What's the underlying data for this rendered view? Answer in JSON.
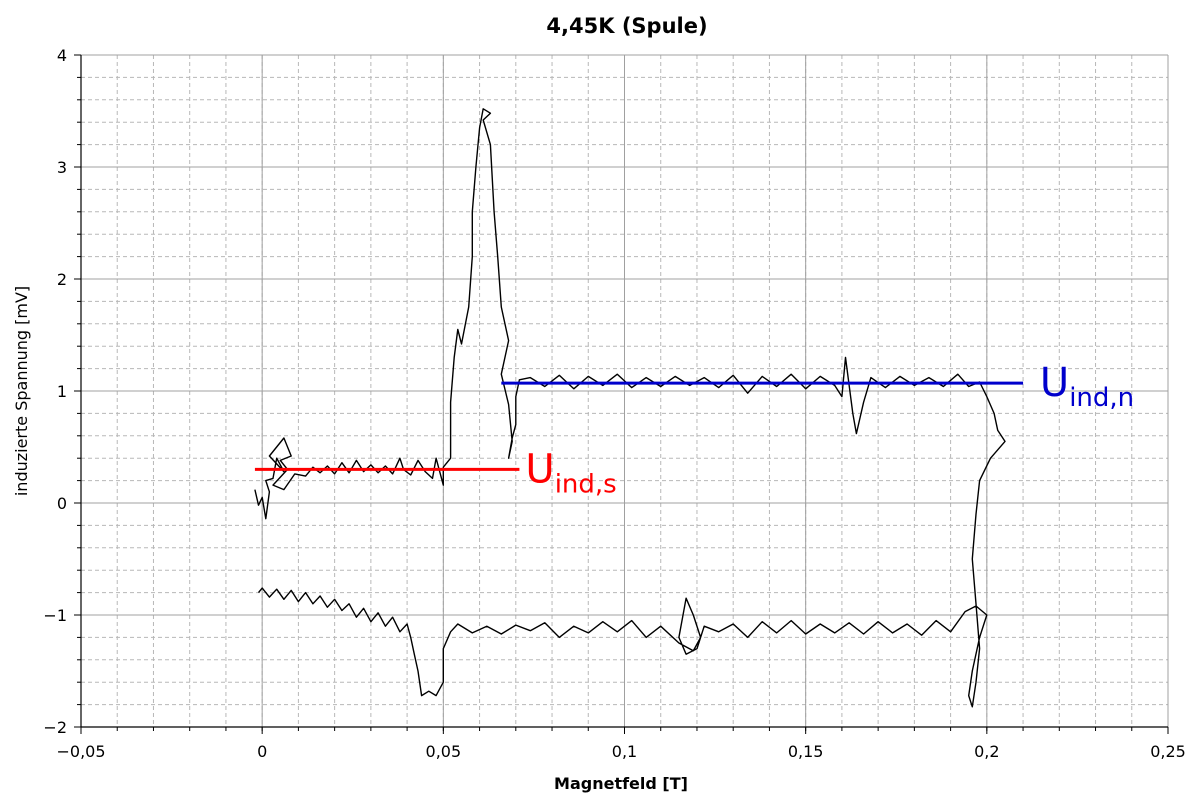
{
  "chart_data": {
    "type": "line",
    "title": "4,45K (Spule)",
    "xlabel": "Magnetfeld [T]",
    "ylabel": "induzierte Spannung [mV]",
    "xlim": [
      -0.05,
      0.25
    ],
    "ylim": [
      -2,
      4
    ],
    "x_ticks": [
      -0.05,
      0,
      0.05,
      0.1,
      0.15,
      0.2,
      0.25
    ],
    "x_tick_labels": [
      "−0,05",
      "0",
      "0,05",
      "0,1",
      "0,15",
      "0,2",
      "0,25"
    ],
    "y_ticks": [
      -2,
      -1,
      0,
      1,
      2,
      3,
      4
    ],
    "y_tick_labels": [
      "−2",
      "−1",
      "0",
      "1",
      "2",
      "3",
      "4"
    ],
    "grid": true,
    "series": [
      {
        "color": "#000000",
        "points": [
          [
            -0.002,
            0.12
          ],
          [
            -0.001,
            -0.02
          ],
          [
            0.0,
            0.05
          ],
          [
            0.001,
            -0.14
          ],
          [
            0.002,
            0.1
          ],
          [
            0.001,
            0.2
          ],
          [
            0.003,
            0.22
          ],
          [
            0.004,
            0.4
          ],
          [
            0.006,
            0.28
          ],
          [
            0.002,
            0.42
          ],
          [
            0.006,
            0.58
          ],
          [
            0.008,
            0.42
          ],
          [
            0.005,
            0.38
          ],
          [
            0.007,
            0.3
          ],
          [
            0.003,
            0.16
          ],
          [
            0.006,
            0.12
          ],
          [
            0.009,
            0.26
          ],
          [
            0.012,
            0.24
          ],
          [
            0.014,
            0.32
          ],
          [
            0.016,
            0.27
          ],
          [
            0.018,
            0.33
          ],
          [
            0.02,
            0.26
          ],
          [
            0.022,
            0.36
          ],
          [
            0.024,
            0.27
          ],
          [
            0.026,
            0.38
          ],
          [
            0.028,
            0.28
          ],
          [
            0.03,
            0.34
          ],
          [
            0.032,
            0.27
          ],
          [
            0.034,
            0.33
          ],
          [
            0.036,
            0.26
          ],
          [
            0.038,
            0.4
          ],
          [
            0.039,
            0.3
          ],
          [
            0.041,
            0.25
          ],
          [
            0.043,
            0.38
          ],
          [
            0.045,
            0.28
          ],
          [
            0.047,
            0.22
          ],
          [
            0.048,
            0.4
          ],
          [
            0.05,
            0.16
          ],
          [
            0.05,
            0.32
          ],
          [
            0.052,
            0.4
          ],
          [
            0.052,
            0.9
          ],
          [
            0.053,
            1.3
          ],
          [
            0.054,
            1.55
          ],
          [
            0.055,
            1.42
          ],
          [
            0.057,
            1.75
          ],
          [
            0.058,
            2.2
          ],
          [
            0.058,
            2.6
          ],
          [
            0.059,
            3.0
          ],
          [
            0.06,
            3.35
          ],
          [
            0.061,
            3.52
          ],
          [
            0.063,
            3.48
          ],
          [
            0.061,
            3.42
          ],
          [
            0.063,
            3.2
          ],
          [
            0.064,
            2.6
          ],
          [
            0.065,
            2.2
          ],
          [
            0.066,
            1.75
          ],
          [
            0.068,
            1.45
          ],
          [
            0.066,
            1.15
          ],
          [
            0.068,
            0.88
          ],
          [
            0.069,
            0.55
          ],
          [
            0.068,
            0.4
          ],
          [
            0.069,
            0.58
          ],
          [
            0.07,
            0.7
          ],
          [
            0.07,
            0.95
          ],
          [
            0.071,
            1.1
          ],
          [
            0.074,
            1.12
          ],
          [
            0.078,
            1.04
          ],
          [
            0.082,
            1.14
          ],
          [
            0.086,
            1.02
          ],
          [
            0.09,
            1.13
          ],
          [
            0.094,
            1.05
          ],
          [
            0.098,
            1.15
          ],
          [
            0.102,
            1.03
          ],
          [
            0.106,
            1.12
          ],
          [
            0.11,
            1.04
          ],
          [
            0.114,
            1.13
          ],
          [
            0.118,
            1.05
          ],
          [
            0.122,
            1.12
          ],
          [
            0.126,
            1.03
          ],
          [
            0.13,
            1.14
          ],
          [
            0.134,
            0.98
          ],
          [
            0.138,
            1.13
          ],
          [
            0.142,
            1.04
          ],
          [
            0.146,
            1.15
          ],
          [
            0.15,
            1.02
          ],
          [
            0.154,
            1.13
          ],
          [
            0.158,
            1.05
          ],
          [
            0.16,
            0.95
          ],
          [
            0.161,
            1.3
          ],
          [
            0.163,
            0.8
          ],
          [
            0.164,
            0.62
          ],
          [
            0.166,
            0.9
          ],
          [
            0.168,
            1.12
          ],
          [
            0.172,
            1.03
          ],
          [
            0.176,
            1.13
          ],
          [
            0.18,
            1.05
          ],
          [
            0.184,
            1.12
          ],
          [
            0.188,
            1.04
          ],
          [
            0.192,
            1.15
          ],
          [
            0.195,
            1.04
          ],
          [
            0.198,
            1.08
          ],
          [
            0.2,
            0.95
          ],
          [
            0.202,
            0.8
          ],
          [
            0.203,
            0.65
          ],
          [
            0.205,
            0.55
          ],
          [
            0.201,
            0.4
          ],
          [
            0.198,
            0.2
          ],
          [
            0.197,
            -0.1
          ],
          [
            0.196,
            -0.5
          ],
          [
            0.197,
            -0.9
          ],
          [
            0.198,
            -1.3
          ],
          [
            0.197,
            -1.6
          ],
          [
            0.196,
            -1.82
          ],
          [
            0.195,
            -1.72
          ],
          [
            0.196,
            -1.5
          ],
          [
            0.198,
            -1.2
          ],
          [
            0.2,
            -1.0
          ],
          [
            0.197,
            -0.92
          ],
          [
            0.194,
            -0.97
          ],
          [
            0.19,
            -1.15
          ],
          [
            0.186,
            -1.05
          ],
          [
            0.182,
            -1.18
          ],
          [
            0.178,
            -1.08
          ],
          [
            0.174,
            -1.16
          ],
          [
            0.17,
            -1.06
          ],
          [
            0.166,
            -1.17
          ],
          [
            0.162,
            -1.07
          ],
          [
            0.158,
            -1.16
          ],
          [
            0.154,
            -1.08
          ],
          [
            0.15,
            -1.17
          ],
          [
            0.146,
            -1.05
          ],
          [
            0.142,
            -1.16
          ],
          [
            0.138,
            -1.06
          ],
          [
            0.134,
            -1.2
          ],
          [
            0.13,
            -1.08
          ],
          [
            0.126,
            -1.15
          ],
          [
            0.122,
            -1.1
          ],
          [
            0.12,
            -1.3
          ],
          [
            0.117,
            -1.35
          ],
          [
            0.115,
            -1.2
          ],
          [
            0.117,
            -0.85
          ],
          [
            0.119,
            -1.0
          ],
          [
            0.121,
            -1.2
          ],
          [
            0.119,
            -1.32
          ],
          [
            0.115,
            -1.25
          ],
          [
            0.11,
            -1.1
          ],
          [
            0.106,
            -1.2
          ],
          [
            0.102,
            -1.05
          ],
          [
            0.098,
            -1.15
          ],
          [
            0.094,
            -1.06
          ],
          [
            0.09,
            -1.16
          ],
          [
            0.086,
            -1.1
          ],
          [
            0.082,
            -1.2
          ],
          [
            0.078,
            -1.07
          ],
          [
            0.074,
            -1.14
          ],
          [
            0.07,
            -1.09
          ],
          [
            0.066,
            -1.17
          ],
          [
            0.062,
            -1.1
          ],
          [
            0.058,
            -1.16
          ],
          [
            0.054,
            -1.08
          ],
          [
            0.052,
            -1.15
          ],
          [
            0.05,
            -1.3
          ],
          [
            0.05,
            -1.52
          ],
          [
            0.05,
            -1.6
          ],
          [
            0.048,
            -1.72
          ],
          [
            0.046,
            -1.68
          ],
          [
            0.044,
            -1.72
          ],
          [
            0.043,
            -1.5
          ],
          [
            0.042,
            -1.35
          ],
          [
            0.041,
            -1.2
          ],
          [
            0.04,
            -1.08
          ],
          [
            0.038,
            -1.15
          ],
          [
            0.036,
            -1.02
          ],
          [
            0.034,
            -1.1
          ],
          [
            0.032,
            -0.98
          ],
          [
            0.03,
            -1.06
          ],
          [
            0.028,
            -0.94
          ],
          [
            0.026,
            -1.02
          ],
          [
            0.024,
            -0.9
          ],
          [
            0.022,
            -0.96
          ],
          [
            0.02,
            -0.86
          ],
          [
            0.018,
            -0.93
          ],
          [
            0.016,
            -0.83
          ],
          [
            0.014,
            -0.9
          ],
          [
            0.012,
            -0.8
          ],
          [
            0.01,
            -0.88
          ],
          [
            0.008,
            -0.78
          ],
          [
            0.006,
            -0.86
          ],
          [
            0.004,
            -0.77
          ],
          [
            0.002,
            -0.84
          ],
          [
            0.0,
            -0.76
          ],
          [
            -0.001,
            -0.8
          ]
        ]
      }
    ],
    "reference_lines": [
      {
        "color": "#ff0000",
        "x": [
          -0.002,
          0.071
        ],
        "y": 0.3
      },
      {
        "color": "#0000cc",
        "x": [
          0.066,
          0.21
        ],
        "y": 1.07
      }
    ],
    "annotations": [
      {
        "main": "U",
        "sub": "ind,s",
        "color": "#ff0000",
        "x": 0.071,
        "y": 0.3
      },
      {
        "main": "U",
        "sub": "ind,n",
        "color": "#0000cc",
        "x": 0.213,
        "y": 1.07
      }
    ]
  }
}
